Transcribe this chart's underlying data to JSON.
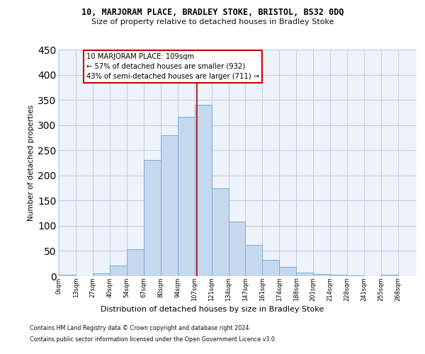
{
  "title": "10, MARJORAM PLACE, BRADLEY STOKE, BRISTOL, BS32 0DQ",
  "subtitle": "Size of property relative to detached houses in Bradley Stoke",
  "xlabel": "Distribution of detached houses by size in Bradley Stoke",
  "ylabel": "Number of detached properties",
  "bar_color": "#c5d8ee",
  "bar_edge_color": "#7aadd4",
  "bg_color": "#edf2fb",
  "grid_color": "#c0cce0",
  "categories": [
    "0sqm",
    "13sqm",
    "27sqm",
    "40sqm",
    "54sqm",
    "67sqm",
    "80sqm",
    "94sqm",
    "107sqm",
    "121sqm",
    "134sqm",
    "147sqm",
    "161sqm",
    "174sqm",
    "188sqm",
    "201sqm",
    "214sqm",
    "228sqm",
    "241sqm",
    "255sqm",
    "268sqm"
  ],
  "values": [
    3,
    0,
    6,
    21,
    54,
    230,
    280,
    317,
    341,
    175,
    108,
    62,
    32,
    18,
    7,
    4,
    3,
    1,
    0,
    3,
    0
  ],
  "annotation_text": "10 MARJORAM PLACE: 109sqm\n← 57% of detached houses are smaller (932)\n43% of semi-detached houses are larger (711) →",
  "annotation_box_edgecolor": "#cc0000",
  "vline_color": "#aa0000",
  "footer1": "Contains HM Land Registry data © Crown copyright and database right 2024.",
  "footer2": "Contains public sector information licensed under the Open Government Licence v3.0.",
  "ylim": [
    0,
    450
  ],
  "yticks": [
    0,
    50,
    100,
    150,
    200,
    250,
    300,
    350,
    400,
    450
  ],
  "bin_width": 1
}
